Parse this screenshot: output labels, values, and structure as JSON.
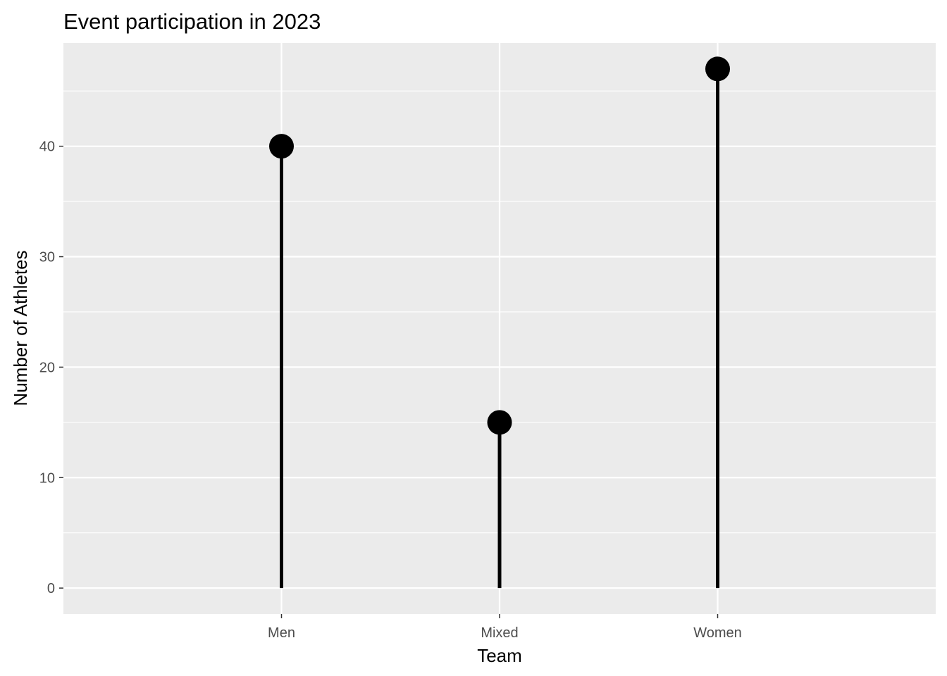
{
  "chart_data": {
    "type": "lollipop",
    "title": "Event participation in 2023",
    "xlabel": "Team",
    "ylabel": "Number of Athletes",
    "categories": [
      "Men",
      "Mixed",
      "Women"
    ],
    "values": [
      40,
      15,
      47
    ],
    "ylim": [
      -2.35,
      49.35
    ],
    "yticks": [
      0,
      10,
      20,
      30,
      40
    ],
    "yticklabels": [
      "0",
      "10",
      "20",
      "30",
      "40"
    ],
    "grid": true,
    "legend": "none",
    "colors": {
      "panel": "#EBEBEB",
      "grid": "#FFFFFF",
      "stem": "#000000",
      "point": "#000000",
      "tick_text": "#4D4D4D"
    }
  }
}
